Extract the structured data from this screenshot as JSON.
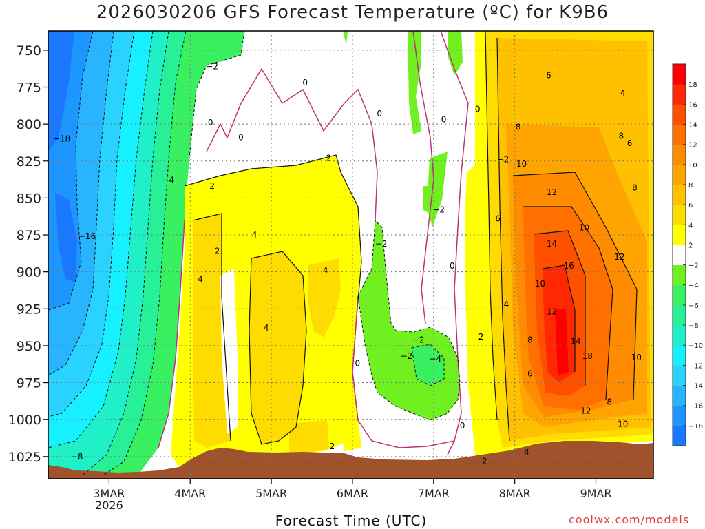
{
  "title": "2026030206 GFS Forecast Temperature (ºC) for K9B6",
  "xlabel": "Forecast Time (UTC)",
  "credit": "coolwx.com/models",
  "chart_data": {
    "type": "heatmap",
    "title": "2026030206 GFS Forecast Temperature (ºC) for K9B6",
    "xlabel": "Forecast Time (UTC)",
    "ylabel": "",
    "x_ticks": [
      {
        "label": "3MAR",
        "sub": "2026",
        "t": 24
      },
      {
        "label": "4MAR",
        "sub": "",
        "t": 48
      },
      {
        "label": "5MAR",
        "sub": "",
        "t": 72
      },
      {
        "label": "6MAR",
        "sub": "",
        "t": 96
      },
      {
        "label": "7MAR",
        "sub": "",
        "t": 120
      },
      {
        "label": "8MAR",
        "sub": "",
        "t": 144
      },
      {
        "label": "9MAR",
        "sub": "",
        "t": 168
      }
    ],
    "xlim": [
      6,
      185
    ],
    "y_ticks": [
      750,
      775,
      800,
      825,
      850,
      875,
      900,
      925,
      950,
      975,
      1000,
      1025
    ],
    "ylim": [
      737,
      1040
    ],
    "colorbar": {
      "levels": [
        -20,
        -18,
        -16,
        -14,
        -12,
        -10,
        -8,
        -6,
        -4,
        -2,
        2,
        4,
        6,
        8,
        10,
        12,
        14,
        16,
        18,
        20
      ],
      "tick_labels": [
        -18,
        -16,
        -14,
        -12,
        -10,
        -8,
        -6,
        -4,
        -2,
        2,
        4,
        6,
        8,
        10,
        12,
        14,
        16,
        18
      ],
      "colors": [
        "#1a78ff",
        "#1e96ff",
        "#28b4ff",
        "#2ad2ff",
        "#16f0ff",
        "#20f0c8",
        "#28f096",
        "#38f060",
        "#70f020",
        "#ffffff",
        "#ffff00",
        "#ffdc00",
        "#ffc000",
        "#ffa400",
        "#ff8c00",
        "#ff7000",
        "#ff5000",
        "#ff2800",
        "#ff0000"
      ]
    },
    "temperature_labels": [
      {
        "text": "−18",
        "t": 10.0,
        "p": 810
      },
      {
        "text": "−16",
        "t": 17.5,
        "p": 876
      },
      {
        "text": "−8",
        "t": 14.5,
        "p": 1025
      },
      {
        "text": "−4",
        "t": 41.5,
        "p": 838
      },
      {
        "text": "−2",
        "t": 54.5,
        "p": 761
      },
      {
        "text": "0",
        "t": 54.0,
        "p": 799
      },
      {
        "text": "0",
        "t": 63.0,
        "p": 809
      },
      {
        "text": "0",
        "t": 82.0,
        "p": 772
      },
      {
        "text": "2",
        "t": 89.0,
        "p": 823
      },
      {
        "text": "2",
        "t": 54.5,
        "p": 842
      },
      {
        "text": "4",
        "t": 67.0,
        "p": 875
      },
      {
        "text": "4",
        "t": 51.0,
        "p": 905
      },
      {
        "text": "4",
        "t": 88.0,
        "p": 899
      },
      {
        "text": "4",
        "t": 70.5,
        "p": 938
      },
      {
        "text": "2",
        "t": 90.0,
        "p": 1018
      },
      {
        "text": "0",
        "t": 104.0,
        "p": 793
      },
      {
        "text": "0",
        "t": 123.0,
        "p": 797
      },
      {
        "text": "0",
        "t": 133.0,
        "p": 790
      },
      {
        "text": "0",
        "t": 125.5,
        "p": 896
      },
      {
        "text": "0",
        "t": 97.5,
        "p": 962
      },
      {
        "text": "−2",
        "t": 104.5,
        "p": 881
      },
      {
        "text": "−2",
        "t": 121.5,
        "p": 858
      },
      {
        "text": "−2",
        "t": 115.5,
        "p": 946
      },
      {
        "text": "−2",
        "t": 112.0,
        "p": 957
      },
      {
        "text": "−4",
        "t": 120.5,
        "p": 959
      },
      {
        "text": "0",
        "t": 128.5,
        "p": 1004
      },
      {
        "text": "−2",
        "t": 140.5,
        "p": 824
      },
      {
        "text": "2",
        "t": 134.0,
        "p": 944
      },
      {
        "text": "−2",
        "t": 134.0,
        "p": 1028
      },
      {
        "text": "6",
        "t": 154.0,
        "p": 767
      },
      {
        "text": "8",
        "t": 145.0,
        "p": 802
      },
      {
        "text": "10",
        "t": 146.0,
        "p": 827
      },
      {
        "text": "12",
        "t": 155.0,
        "p": 846
      },
      {
        "text": "14",
        "t": 155.0,
        "p": 881
      },
      {
        "text": "16",
        "t": 160.0,
        "p": 896
      },
      {
        "text": "10",
        "t": 151.5,
        "p": 908
      },
      {
        "text": "12",
        "t": 155.0,
        "p": 927
      },
      {
        "text": "14",
        "t": 162.0,
        "p": 947
      },
      {
        "text": "18",
        "t": 165.5,
        "p": 957
      },
      {
        "text": "6",
        "t": 139.0,
        "p": 864
      },
      {
        "text": "4",
        "t": 141.5,
        "p": 922
      },
      {
        "text": "8",
        "t": 148.5,
        "p": 946
      },
      {
        "text": "6",
        "t": 148.5,
        "p": 969
      },
      {
        "text": "8",
        "t": 172.0,
        "p": 988
      },
      {
        "text": "12",
        "t": 165.0,
        "p": 994
      },
      {
        "text": "10",
        "t": 176.0,
        "p": 1003
      },
      {
        "text": "10",
        "t": 180.0,
        "p": 958
      },
      {
        "text": "10",
        "t": 164.5,
        "p": 870
      },
      {
        "text": "12",
        "t": 175.0,
        "p": 890
      },
      {
        "text": "8",
        "t": 175.5,
        "p": 808
      },
      {
        "text": "6",
        "t": 178.0,
        "p": 813
      },
      {
        "text": "4",
        "t": 176.0,
        "p": 779
      },
      {
        "text": "8",
        "t": 179.5,
        "p": 843
      },
      {
        "text": "4",
        "t": 147.5,
        "p": 1022
      },
      {
        "text": "2",
        "t": 56.0,
        "p": 886
      }
    ]
  }
}
